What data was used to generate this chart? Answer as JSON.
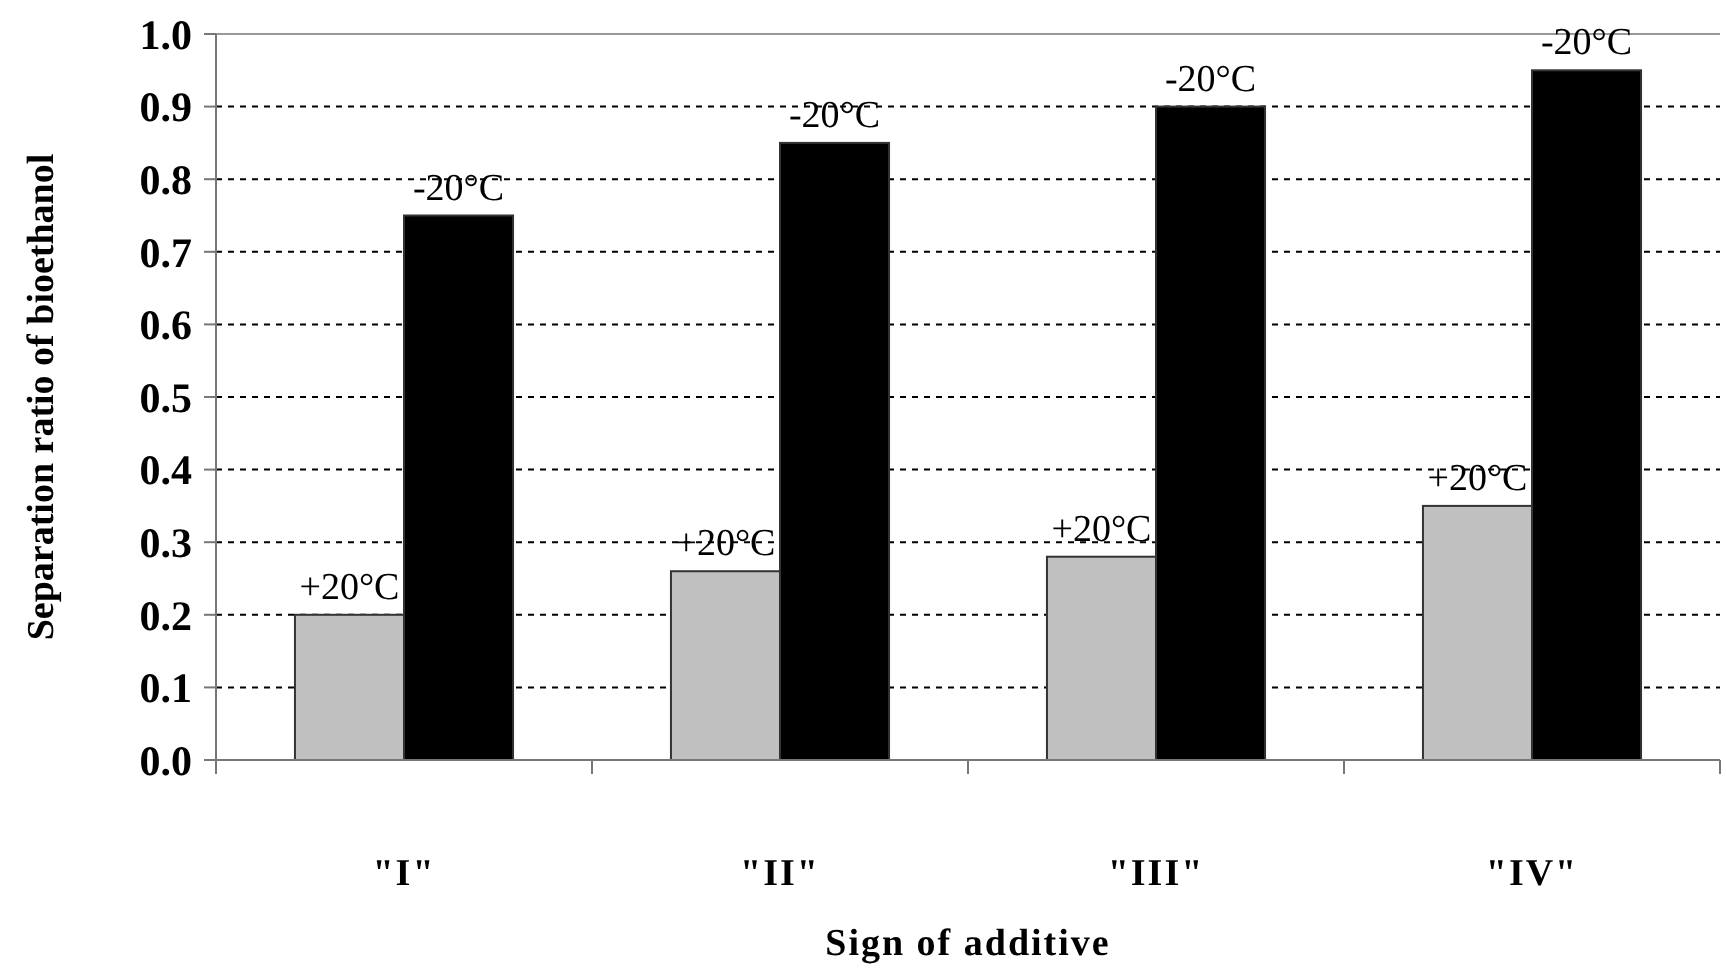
{
  "chart_data": {
    "type": "bar",
    "xlabel": "Sign of additive",
    "ylabel": "Separation ratio of bioethanol",
    "categories": [
      "\"I\"",
      "\"II\"",
      "\"III\"",
      "\"IV\""
    ],
    "series": [
      {
        "name": "+20°C",
        "color": "#c0c0c0",
        "values": [
          0.2,
          0.26,
          0.28,
          0.35
        ]
      },
      {
        "name": "-20°C",
        "color": "#000000",
        "values": [
          0.75,
          0.85,
          0.9,
          0.95
        ]
      }
    ],
    "ylim": [
      0,
      1
    ],
    "yticks": [
      {
        "value": 0,
        "label": "0.0"
      },
      0.1,
      0.2,
      0.3,
      0.4,
      0.5,
      0.6,
      0.7,
      0.8,
      0.9,
      {
        "value": 1,
        "label": "1.0"
      }
    ],
    "grid": "y"
  }
}
